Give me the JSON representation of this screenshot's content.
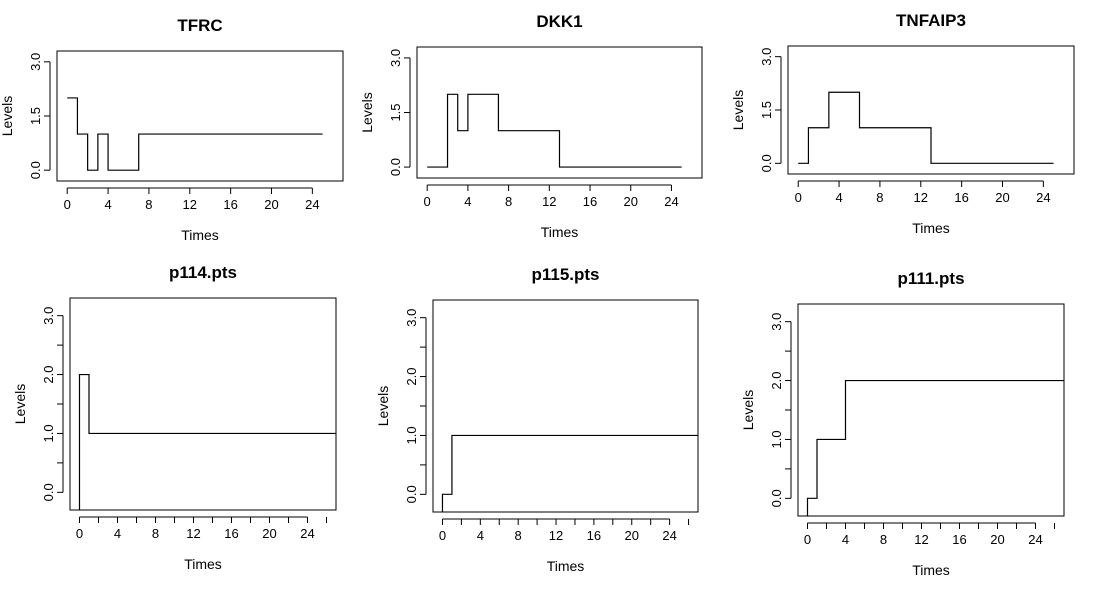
{
  "chart_data": [
    {
      "type": "line",
      "title": "TFRC",
      "xlabel": "Times",
      "ylabel": "Levels",
      "xlim": [
        -1,
        27
      ],
      "ylim": [
        -0.3,
        3.3
      ],
      "x_ticks": [
        0,
        4,
        8,
        12,
        16,
        20,
        24
      ],
      "x_tick_labels": [
        "0",
        "4",
        "8",
        "12",
        "16",
        "20",
        "24"
      ],
      "y_ticks": [
        0,
        1.5,
        3
      ],
      "y_tick_labels": [
        "0.0",
        "1.5",
        "3.0"
      ],
      "y_minor_ticks": [],
      "series": [
        {
          "x": [
            0,
            1,
            2,
            3,
            4,
            7,
            25
          ],
          "y": [
            2,
            1,
            0,
            1,
            0,
            1,
            1
          ]
        }
      ]
    },
    {
      "type": "line",
      "title": "DKK1",
      "xlabel": "Times",
      "ylabel": "Levels",
      "xlim": [
        -1,
        27
      ],
      "ylim": [
        -0.3,
        3.3
      ],
      "x_ticks": [
        0,
        4,
        8,
        12,
        16,
        20,
        24
      ],
      "x_tick_labels": [
        "0",
        "4",
        "8",
        "12",
        "16",
        "20",
        "24"
      ],
      "y_ticks": [
        0,
        1.5,
        3
      ],
      "y_tick_labels": [
        "0.0",
        "1.5",
        "3.0"
      ],
      "y_minor_ticks": [],
      "series": [
        {
          "x": [
            0,
            2,
            3,
            4,
            7,
            13,
            25
          ],
          "y": [
            0,
            2,
            1,
            2,
            1,
            0,
            0
          ]
        }
      ]
    },
    {
      "type": "line",
      "title": "TNFAIP3",
      "xlabel": "Times",
      "ylabel": "Levels",
      "xlim": [
        -1,
        27
      ],
      "ylim": [
        -0.3,
        3.3
      ],
      "x_ticks": [
        0,
        4,
        8,
        12,
        16,
        20,
        24
      ],
      "x_tick_labels": [
        "0",
        "4",
        "8",
        "12",
        "16",
        "20",
        "24"
      ],
      "y_ticks": [
        0,
        1.5,
        3
      ],
      "y_tick_labels": [
        "0.0",
        "1.5",
        "3.0"
      ],
      "y_minor_ticks": [],
      "series": [
        {
          "x": [
            0,
            1,
            3,
            6,
            13,
            25
          ],
          "y": [
            0,
            1,
            2,
            1,
            0,
            0
          ]
        }
      ]
    },
    {
      "type": "line",
      "title": "p114.pts",
      "xlabel": "Times",
      "ylabel": "Levels",
      "xlim": [
        -1,
        27
      ],
      "ylim": [
        -0.3,
        3.3
      ],
      "x_ticks": [
        0,
        4,
        8,
        12,
        16,
        20,
        24
      ],
      "x_tick_labels": [
        "0",
        "4",
        "8",
        "12",
        "16",
        "20",
        "24"
      ],
      "x_minor_ticks": [
        2,
        6,
        10,
        14,
        18,
        22,
        26
      ],
      "y_ticks": [
        0,
        1,
        2,
        3
      ],
      "y_tick_labels": [
        "0.0",
        "1.0",
        "2.0",
        "3.0"
      ],
      "y_minor_ticks": [
        0.5,
        1.5,
        2.5
      ],
      "series": [
        {
          "x": [
            0,
            1,
            27
          ],
          "y": [
            2,
            1,
            1
          ],
          "start_from_axis": true
        }
      ]
    },
    {
      "type": "line",
      "title": "p115.pts",
      "xlabel": "Times",
      "ylabel": "Levels",
      "xlim": [
        -1,
        27
      ],
      "ylim": [
        -0.3,
        3.3
      ],
      "x_ticks": [
        0,
        4,
        8,
        12,
        16,
        20,
        24
      ],
      "x_tick_labels": [
        "0",
        "4",
        "8",
        "12",
        "16",
        "20",
        "24"
      ],
      "x_minor_ticks": [
        2,
        6,
        10,
        14,
        18,
        22,
        26
      ],
      "y_ticks": [
        0,
        1,
        2,
        3
      ],
      "y_tick_labels": [
        "0.0",
        "1.0",
        "2.0",
        "3.0"
      ],
      "y_minor_ticks": [
        0.5,
        1.5,
        2.5
      ],
      "series": [
        {
          "x": [
            0,
            1,
            27
          ],
          "y": [
            0,
            1,
            1
          ],
          "start_from_axis": true
        }
      ]
    },
    {
      "type": "line",
      "title": "p111.pts",
      "xlabel": "Times",
      "ylabel": "Levels",
      "xlim": [
        -1,
        27
      ],
      "ylim": [
        -0.3,
        3.3
      ],
      "x_ticks": [
        0,
        4,
        8,
        12,
        16,
        20,
        24
      ],
      "x_tick_labels": [
        "0",
        "4",
        "8",
        "12",
        "16",
        "20",
        "24"
      ],
      "x_minor_ticks": [
        2,
        6,
        10,
        14,
        18,
        22,
        26
      ],
      "y_ticks": [
        0,
        1,
        2,
        3
      ],
      "y_tick_labels": [
        "0.0",
        "1.0",
        "2.0",
        "3.0"
      ],
      "y_minor_ticks": [
        0.5,
        1.5,
        2.5
      ],
      "series": [
        {
          "x": [
            0,
            1,
            4,
            27
          ],
          "y": [
            0,
            1,
            2,
            2
          ],
          "start_from_axis": true
        }
      ]
    }
  ]
}
